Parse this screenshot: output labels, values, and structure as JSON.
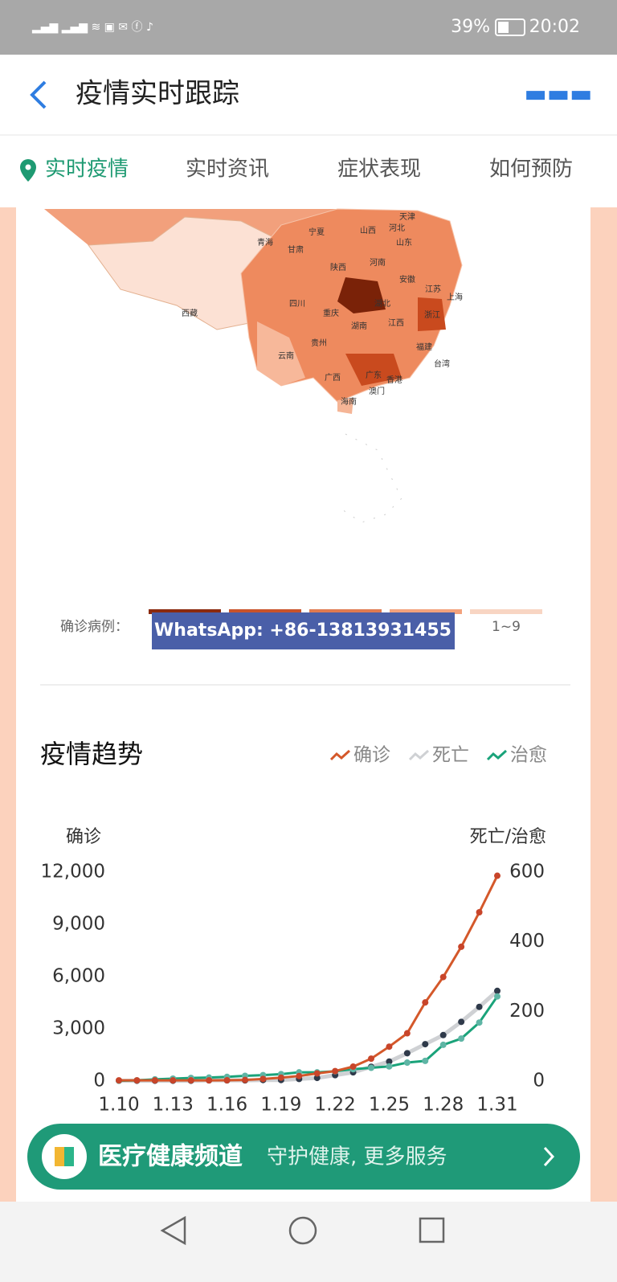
{
  "status_bar": {
    "battery": "39%",
    "time": "20:02"
  },
  "header": {
    "title": "疫情实时跟踪"
  },
  "tabs": [
    "实时疫情",
    "实时资讯",
    "症状表现",
    "如何预防"
  ],
  "map": {
    "labels": [
      "天津",
      "河北",
      "山西",
      "山东",
      "青海",
      "宁夏",
      "甘肃",
      "陕西",
      "河南",
      "安徽",
      "江苏",
      "上海",
      "四川",
      "重庆",
      "湖北",
      "浙江",
      "西藏",
      "湖南",
      "江西",
      "贵州",
      "福建",
      "云南",
      "广西",
      "广东",
      "香港",
      "台湾",
      "澳门",
      "海南"
    ],
    "legend_title": "确诊病例：",
    "legend_last": "1~9"
  },
  "watermark": "WhatsApp: +86-13813931455",
  "chart_data": {
    "type": "line",
    "title": "疫情趋势",
    "y_label": "确诊",
    "y2_label": "死亡/治愈",
    "categories": [
      "1.10",
      null,
      null,
      "1.13",
      null,
      null,
      "1.16",
      null,
      null,
      "1.19",
      null,
      null,
      "1.22",
      null,
      null,
      "1.25",
      null,
      null,
      "1.28",
      null,
      null,
      "1.31"
    ],
    "ylim": [
      0,
      12000
    ],
    "yticks": [
      0,
      {
        "value": 3000,
        "label": "3,000"
      },
      {
        "value": 6000,
        "label": "6,000"
      },
      {
        "value": 9000,
        "label": "9,000"
      },
      {
        "value": 12000,
        "label": "12,000"
      }
    ],
    "y2lim": [
      0,
      600
    ],
    "y2ticks": [
      0,
      200,
      400,
      600
    ],
    "series": [
      {
        "name": "确诊",
        "color": "#d4582a",
        "marker_color": "#c8452a",
        "values": [
          41,
          41,
          41,
          41,
          41,
          41,
          45,
          62,
          121,
          198,
          291,
          440,
          571,
          830,
          1287,
          1975,
          2744,
          4515,
          5974,
          7711,
          9692,
          11791
        ]
      },
      {
        "name": "死亡",
        "color": "#cfd1d4",
        "marker_color": "#2f3a4a",
        "axis": "y2",
        "values": [
          1,
          1,
          1,
          1,
          1,
          2,
          2,
          2,
          3,
          3,
          6,
          9,
          17,
          25,
          41,
          56,
          80,
          106,
          132,
          170,
          213,
          259
        ]
      },
      {
        "name": "治愈",
        "color": "#1aa37a",
        "marker_color": "#5fb5a5",
        "axis": "y2",
        "values": [
          1,
          2,
          5,
          7,
          9,
          10,
          12,
          15,
          17,
          20,
          25,
          25,
          28,
          34,
          38,
          42,
          53,
          58,
          104,
          122,
          168,
          243
        ]
      }
    ]
  },
  "banner": {
    "title": "医疗健康频道",
    "subtitle": "守护健康, 更多服务"
  }
}
